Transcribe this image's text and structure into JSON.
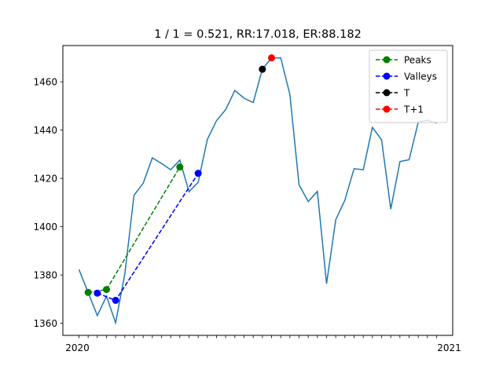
{
  "chart_data": {
    "type": "line",
    "title": "1 / 1 = 0.521, RR:17.018, ER:88.182",
    "xlabel": "",
    "ylabel": "",
    "ylim": [
      1355,
      1475
    ],
    "yticks": [
      1360,
      1380,
      1400,
      1420,
      1440,
      1460
    ],
    "grid": false,
    "legend_position": "top-right",
    "x_tick_labels_note": "x-axis tick labels are dates that overlap into an illegible run; first and last visible fragments shown",
    "x_tick_first": "2020",
    "x_tick_last": "2021",
    "main_series": {
      "color": "#1f77b4",
      "values": [
        1382.3,
        1372.8,
        1363.2,
        1371.2,
        1360.2,
        1380.4,
        1413.0,
        1418.0,
        1428.5,
        1426.2,
        1423.6,
        1427.6,
        1414.5,
        1418.4,
        1436.1,
        1443.9,
        1448.5,
        1456.4,
        1453.2,
        1451.4,
        1465.2,
        1469.9,
        1469.9,
        1454.8,
        1417.3,
        1410.4,
        1414.6,
        1376.4,
        1402.9,
        1411.0,
        1424.0,
        1423.6,
        1441.1,
        1436.0,
        1407.3,
        1427.0,
        1427.7,
        1443.3,
        1444.1,
        1442.9
      ]
    },
    "series": [
      {
        "name": "Peaks",
        "color": "#008000",
        "style": "dashed",
        "marker": "circle",
        "points": [
          [
            1,
            1372.8
          ],
          [
            3,
            1374.0
          ],
          [
            11,
            1424.7
          ]
        ]
      },
      {
        "name": "Valleys",
        "color": "#0000ff",
        "style": "dashed",
        "marker": "circle",
        "points": [
          [
            2,
            1372.5
          ],
          [
            4,
            1369.5
          ],
          [
            13,
            1422.1
          ]
        ]
      },
      {
        "name": "T",
        "color": "#000000",
        "style": "dashed",
        "marker": "circle",
        "points": [
          [
            20,
            1465.2
          ]
        ]
      },
      {
        "name": "T+1",
        "color": "#ff0000",
        "style": "dashed",
        "marker": "circle",
        "points": [
          [
            21,
            1469.9
          ]
        ]
      }
    ]
  }
}
